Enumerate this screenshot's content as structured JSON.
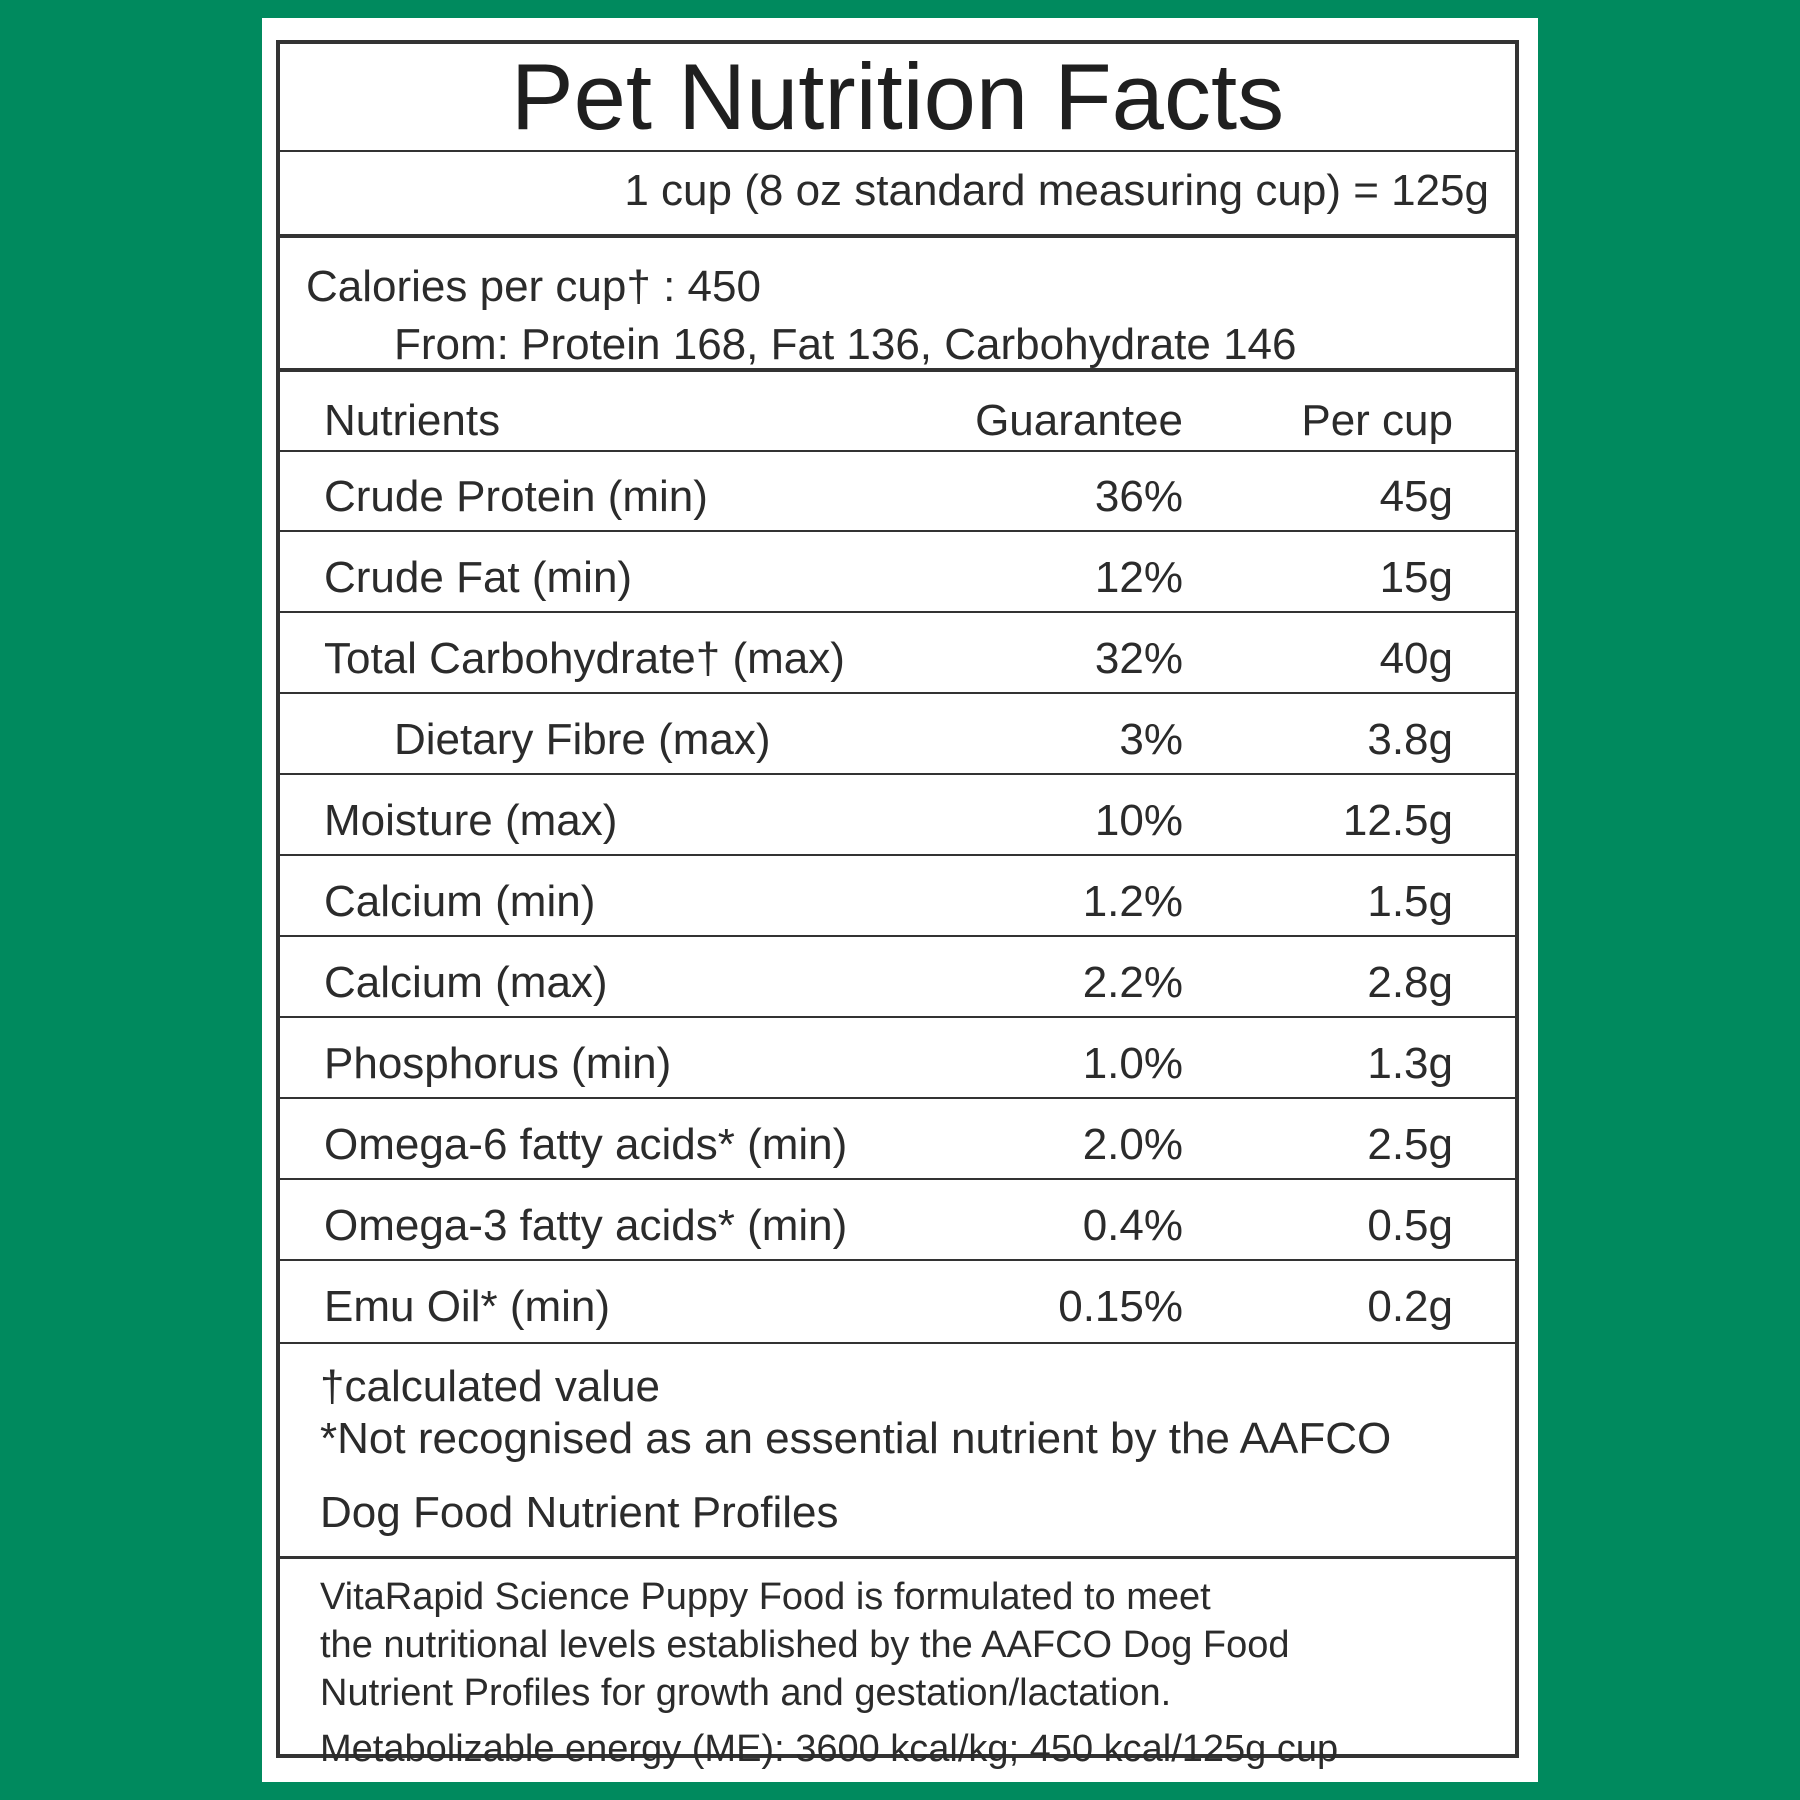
{
  "label": {
    "title": "Pet Nutrition Facts",
    "serving": "1 cup (8 oz standard measuring cup) = 125g",
    "calories": "Calories per cup† : 450",
    "calories_from": "From: Protein 168, Fat 136, Carbohydrate 146",
    "table": {
      "headers": {
        "nutrients": "Nutrients",
        "guarantee": "Guarantee",
        "per_cup": "Per cup"
      },
      "rows": [
        {
          "name": "Crude Protein (min)",
          "guarantee": "36%",
          "per_cup": "45g"
        },
        {
          "name": "Crude Fat (min)",
          "guarantee": "12%",
          "per_cup": "15g"
        },
        {
          "name": "Total Carbohydrate† (max)",
          "guarantee": "32%",
          "per_cup": "40g"
        },
        {
          "name": "Dietary Fibre (max)",
          "guarantee": "3%",
          "per_cup": "3.8g"
        },
        {
          "name": "Moisture (max)",
          "guarantee": "10%",
          "per_cup": "12.5g"
        },
        {
          "name": "Calcium (min)",
          "guarantee": "1.2%",
          "per_cup": "1.5g"
        },
        {
          "name": "Calcium (max)",
          "guarantee": "2.2%",
          "per_cup": "2.8g"
        },
        {
          "name": "Phosphorus (min)",
          "guarantee": "1.0%",
          "per_cup": "1.3g"
        },
        {
          "name": "Omega-6 fatty acids* (min)",
          "guarantee": "2.0%",
          "per_cup": "2.5g"
        },
        {
          "name": "Omega-3 fatty acids* (min)",
          "guarantee": "0.4%",
          "per_cup": "0.5g"
        },
        {
          "name": "Emu Oil* (min)",
          "guarantee": "0.15%",
          "per_cup": "0.2g"
        }
      ]
    },
    "footnotes": [
      "†calculated value",
      "*Not recognised as an essential nutrient by the AAFCO",
      "Dog Food Nutrient Profiles"
    ],
    "statement": [
      "VitaRapid Science Puppy Food is formulated to meet",
      "the nutritional levels established by the AAFCO Dog Food",
      "Nutrient Profiles for growth and gestation/lactation.",
      "Metabolizable energy (ME): 3600 kcal/kg; 450 kcal/125g cup"
    ]
  },
  "colors": {
    "background": "#008a5e",
    "label_background": "#ffffff",
    "border": "#333333",
    "text": "#2b2b2b"
  }
}
